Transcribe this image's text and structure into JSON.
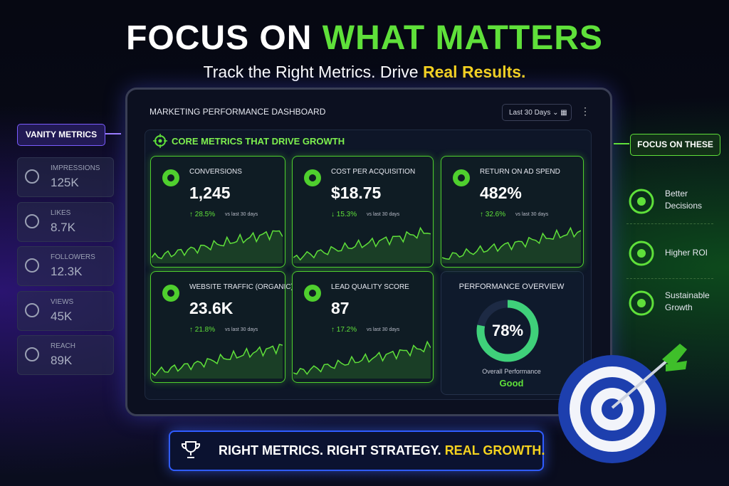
{
  "header": {
    "title_a": "FOCUS ON",
    "title_b": "WHAT MATTERS",
    "subtitle_a": "Track the Right Metrics. Drive",
    "subtitle_b": "Real Results."
  },
  "vanity": {
    "label": "VANITY METRICS",
    "items": [
      {
        "name": "IMPRESSIONS",
        "value": "125K"
      },
      {
        "name": "LIKES",
        "value": "8.7K"
      },
      {
        "name": "FOLLOWERS",
        "value": "12.3K"
      },
      {
        "name": "VIEWS",
        "value": "45K"
      },
      {
        "name": "REACH",
        "value": "89K"
      }
    ]
  },
  "dashboard": {
    "title": "MARKETING PERFORMANCE DASHBOARD",
    "range": "Last 30 Days",
    "section": "CORE METRICS THAT DRIVE GROWTH",
    "cards": [
      {
        "name": "CONVERSIONS",
        "value": "1,245",
        "change": "↑ 28.5%",
        "note": "vs last 30 days"
      },
      {
        "name": "COST PER ACQUISITION",
        "value": "$18.75",
        "change": "↓ 15.3%",
        "note": "vs last 30 days"
      },
      {
        "name": "RETURN ON AD SPEND",
        "value": "482%",
        "change": "↑ 32.6%",
        "note": "vs last 30 days"
      },
      {
        "name": "WEBSITE TRAFFIC (ORGANIC)",
        "value": "23.6K",
        "change": "↑ 21.8%",
        "note": "vs last 30 days"
      },
      {
        "name": "LEAD QUALITY SCORE",
        "value": "87",
        "change": "↑ 17.2%",
        "note": "vs last 30 days"
      }
    ],
    "overview": {
      "title": "PERFORMANCE OVERVIEW",
      "value": 78,
      "label": "78%",
      "caption": "Overall Performance",
      "rating": "Good"
    }
  },
  "focus": {
    "label": "FOCUS ON THESE",
    "items": [
      "Better Decisions",
      "Higher ROI",
      "Sustainable Growth"
    ]
  },
  "banner": {
    "text_a": "RIGHT METRICS. RIGHT STRATEGY.",
    "text_b": "REAL GROWTH."
  }
}
